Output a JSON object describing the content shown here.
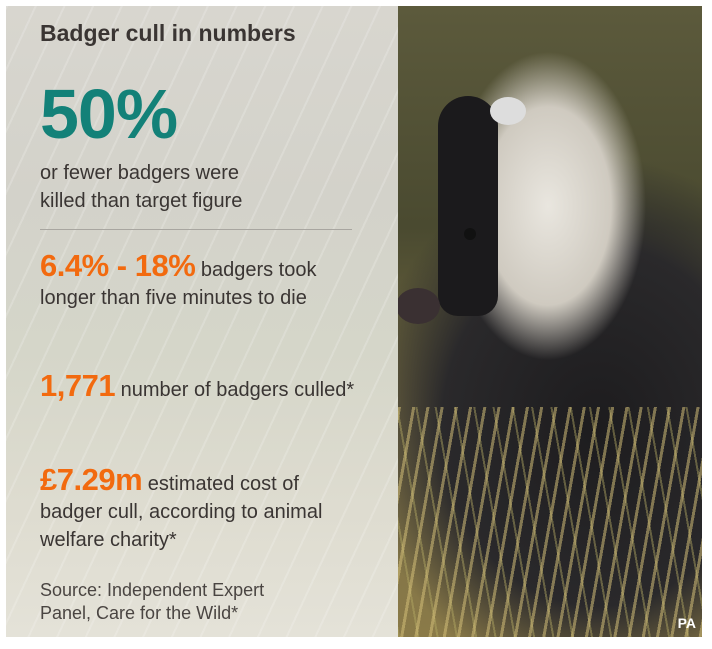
{
  "title": "Badger cull in numbers",
  "headline_stat": {
    "value": "50%",
    "text_line1": "or fewer badgers were",
    "text_line2": "killed than target figure"
  },
  "stats": [
    {
      "value": "6.4% - 18%",
      "text_first": " badgers",
      "text_rest": "took longer than five minutes to die"
    },
    {
      "value": "1,771",
      "text_first": " number of badgers",
      "text_rest": "culled*"
    },
    {
      "value": "£7.29m",
      "text_first": " estimated cost",
      "text_rest": "of badger cull, according to animal welfare charity*"
    }
  ],
  "source_line1": "Source: Independent Expert",
  "source_line2": "Panel, Care for the Wild*",
  "photo_credit": "PA",
  "colors": {
    "teal": "#138178",
    "orange": "#f26a0f",
    "text": "#3a3533"
  }
}
